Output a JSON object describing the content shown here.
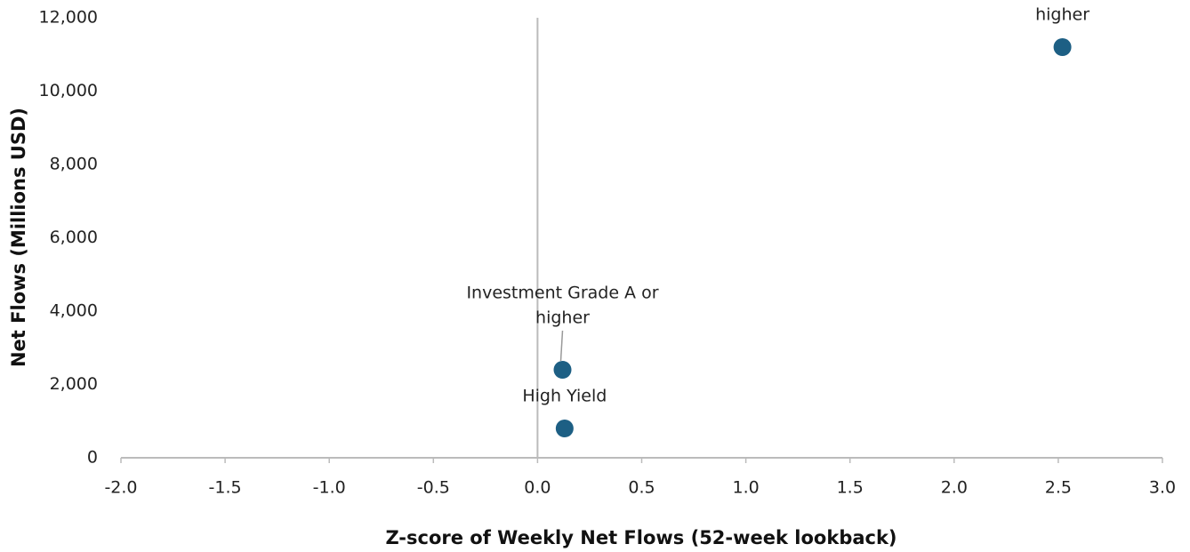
{
  "chart_data": {
    "type": "scatter",
    "x_label": "Z-score of Weekly Net Flows (52-week lookback)",
    "y_label": "Net Flows (Millions USD)",
    "series": [
      {
        "color": "#1d5f84",
        "x": [
          2.52,
          0.12,
          0.13
        ],
        "values": [
          11200,
          2400,
          800
        ],
        "labels": [
          [
            "higher"
          ],
          [
            "Investment Grade A or",
            "higher"
          ],
          [
            "High Yield"
          ]
        ]
      }
    ],
    "xlim": [
      -2.0,
      3.0
    ],
    "xticks": [
      {
        "value": -2.0,
        "label": "-2.0"
      },
      {
        "value": -1.5,
        "label": "-1.5"
      },
      {
        "value": -1.0,
        "label": "-1.0"
      },
      {
        "value": -0.5,
        "label": "-0.5"
      },
      {
        "value": 0,
        "label": "0.0"
      },
      {
        "value": 0.5,
        "label": "0.5"
      },
      {
        "value": 1.0,
        "label": "1.0"
      },
      {
        "value": 1.5,
        "label": "1.5"
      },
      {
        "value": 2.0,
        "label": "2.0"
      },
      {
        "value": 2.5,
        "label": "2.5"
      },
      {
        "value": 3.0,
        "label": "3.0"
      }
    ],
    "ylim": [
      0,
      12000
    ],
    "yticks": [
      0,
      {
        "value": 2000,
        "label": "2,000"
      },
      {
        "value": 4000,
        "label": "4,000"
      },
      {
        "value": 6000,
        "label": "6,000"
      },
      {
        "value": 8000,
        "label": "8,000"
      },
      {
        "value": 10000,
        "label": "10,000"
      },
      {
        "value": 12000,
        "label": "12,000"
      }
    ],
    "grid": false
  }
}
